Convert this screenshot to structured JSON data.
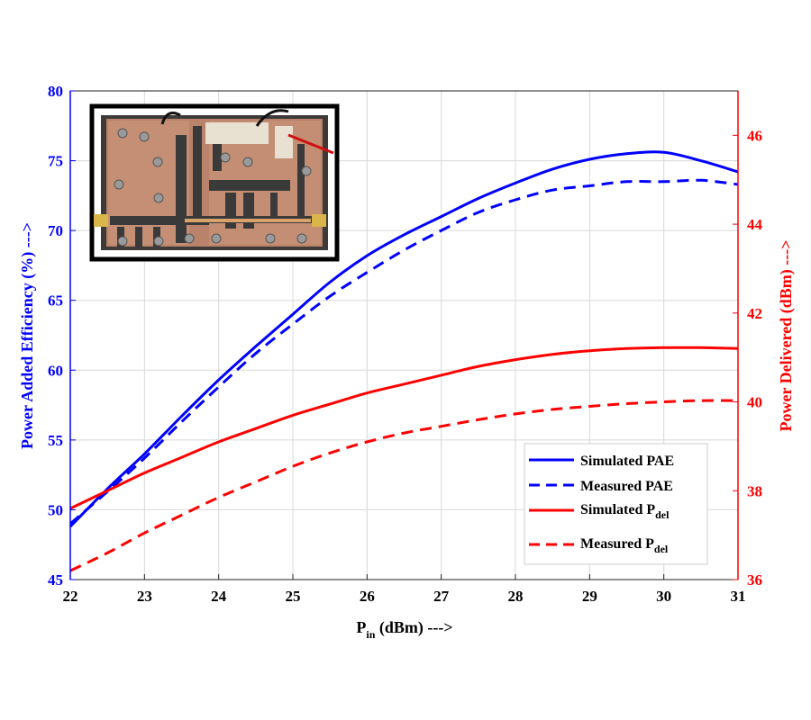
{
  "chart_data": {
    "type": "line",
    "x_label_main": "P",
    "x_label_sub": "in",
    "x_label_rest": " (dBm) --->",
    "y_left_label": "Power Added Efficiency (%) --->",
    "y_right_label": "Power Delivered (dBm) --->",
    "xlim": [
      22,
      31
    ],
    "ylim_left": [
      45,
      80
    ],
    "ylim_right": [
      36,
      47
    ],
    "x_ticks": [
      "22",
      "23",
      "24",
      "25",
      "26",
      "27",
      "28",
      "29",
      "30",
      "31"
    ],
    "y_left_ticks": [
      "45",
      "50",
      "55",
      "60",
      "65",
      "70",
      "75",
      "80"
    ],
    "y_right_ticks": [
      "36",
      "38",
      "40",
      "42",
      "44",
      "46"
    ],
    "grid": true,
    "legend_position": "bottom-right",
    "inset": "photo of the fabricated power amplifier board",
    "series": [
      {
        "name_main": "Simulated PAE",
        "name_sub": "",
        "axis": "left",
        "color": "#0000ff",
        "dash": "solid",
        "x": [
          22,
          22.5,
          23,
          23.5,
          24,
          24.5,
          25,
          25.5,
          26,
          26.5,
          27,
          27.5,
          28,
          28.5,
          29,
          29.5,
          30,
          30.5,
          31
        ],
        "y": [
          48.8,
          51.5,
          54.0,
          56.7,
          59.3,
          61.7,
          64.0,
          66.3,
          68.2,
          69.7,
          71.0,
          72.3,
          73.4,
          74.4,
          75.1,
          75.5,
          75.6,
          75.0,
          74.2
        ]
      },
      {
        "name_main": "Measured PAE",
        "name_sub": "",
        "axis": "left",
        "color": "#0000ff",
        "dash": "dashed",
        "x": [
          22,
          22.5,
          23,
          23.5,
          24,
          24.5,
          25,
          25.5,
          26,
          26.5,
          27,
          27.5,
          28,
          28.5,
          29,
          29.5,
          30,
          30.5,
          31
        ],
        "y": [
          49.0,
          51.3,
          53.7,
          56.3,
          58.8,
          61.2,
          63.3,
          65.3,
          67.0,
          68.6,
          70.0,
          71.3,
          72.2,
          72.9,
          73.2,
          73.5,
          73.5,
          73.6,
          73.3
        ]
      },
      {
        "name_main": "Simulated P",
        "name_sub": "del",
        "axis": "right",
        "color": "#ff0000",
        "dash": "solid",
        "x": [
          22,
          22.5,
          23,
          23.5,
          24,
          24.5,
          25,
          25.5,
          26,
          26.5,
          27,
          27.5,
          28,
          28.5,
          29,
          29.5,
          30,
          30.5,
          31
        ],
        "y": [
          37.6,
          38.0,
          38.4,
          38.75,
          39.1,
          39.4,
          39.7,
          39.95,
          40.2,
          40.4,
          40.6,
          40.8,
          40.95,
          41.07,
          41.15,
          41.2,
          41.22,
          41.22,
          41.2
        ]
      },
      {
        "name_main": "Measured P",
        "name_sub": "del",
        "axis": "right",
        "color": "#ff0000",
        "dash": "dashed",
        "x": [
          22,
          22.5,
          23,
          23.5,
          24,
          24.5,
          25,
          25.5,
          26,
          26.5,
          27,
          27.5,
          28,
          28.5,
          29,
          29.5,
          30,
          30.5,
          31
        ],
        "y": [
          36.2,
          36.6,
          37.05,
          37.45,
          37.85,
          38.2,
          38.55,
          38.85,
          39.1,
          39.3,
          39.45,
          39.6,
          39.73,
          39.83,
          39.9,
          39.96,
          40.0,
          40.03,
          40.03
        ]
      }
    ]
  }
}
